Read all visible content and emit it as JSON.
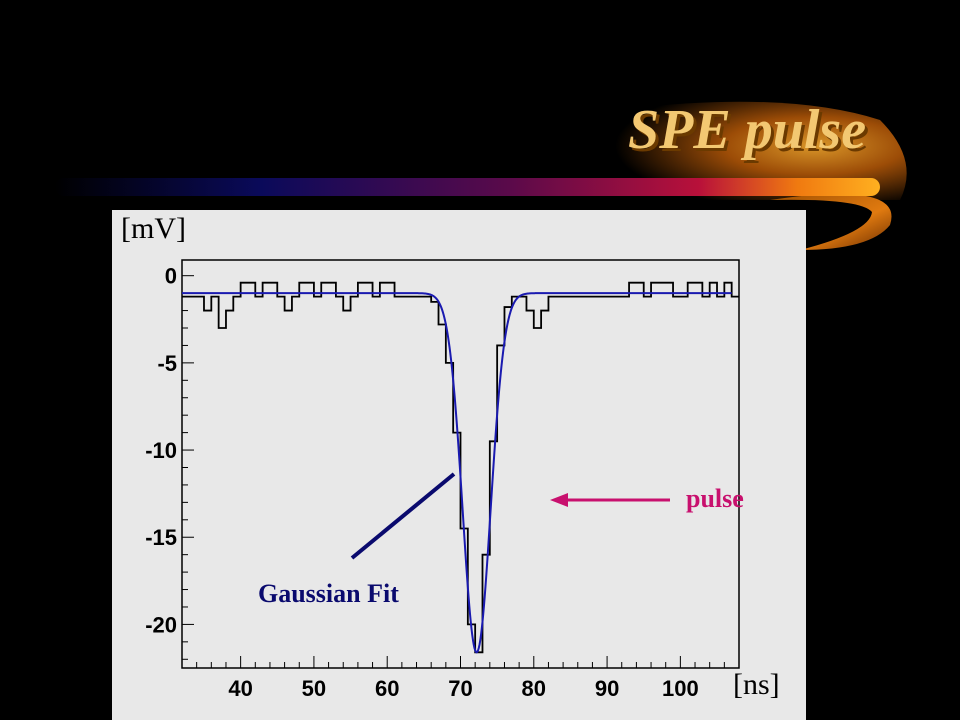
{
  "slide": {
    "title": "SPE pulse"
  },
  "annotations": {
    "gaussian_fit": "Gaussian Fit",
    "pulse": "pulse"
  },
  "colors": {
    "background": "#000000",
    "title": "#f3c872",
    "pulse_trace": "#000000",
    "fit_curve": "#1a1ab0",
    "gaussian_arrow": "#0a0a6e",
    "pulse_arrow": "#c8106e",
    "plot_frame": "#e8e8e8"
  },
  "chart_data": {
    "type": "line",
    "title": "",
    "xlabel": "[ns]",
    "ylabel": "[mV]",
    "xlim": [
      32,
      108
    ],
    "ylim": [
      -22.5,
      0.9
    ],
    "x_ticks": [
      40,
      50,
      60,
      70,
      80,
      90,
      100
    ],
    "y_ticks": [
      0,
      -5,
      -10,
      -15,
      -20
    ],
    "grid": false,
    "series": [
      {
        "name": "pulse",
        "style": "step",
        "x": [
          32,
          33,
          34,
          35,
          36,
          37,
          38,
          39,
          40,
          41,
          42,
          43,
          44,
          45,
          46,
          47,
          48,
          49,
          50,
          51,
          52,
          53,
          54,
          55,
          56,
          57,
          58,
          59,
          60,
          61,
          62,
          63,
          64,
          65,
          66,
          67,
          68,
          69,
          70,
          71,
          72,
          73,
          74,
          75,
          76,
          77,
          78,
          79,
          80,
          81,
          82,
          83,
          84,
          85,
          86,
          87,
          88,
          89,
          90,
          91,
          92,
          93,
          94,
          95,
          96,
          97,
          98,
          99,
          100,
          101,
          102,
          103,
          104,
          105,
          106,
          107
        ],
        "y": [
          -1.2,
          -1.2,
          -1.2,
          -2.0,
          -1.2,
          -3.0,
          -2.0,
          -1.2,
          -0.4,
          -0.4,
          -1.2,
          -0.4,
          -0.4,
          -1.2,
          -2.0,
          -1.2,
          -0.4,
          -0.4,
          -1.2,
          -0.4,
          -0.4,
          -1.2,
          -2.0,
          -1.2,
          -0.4,
          -0.4,
          -1.2,
          -0.4,
          -0.4,
          -1.2,
          -1.2,
          -1.2,
          -1.2,
          -1.2,
          -1.5,
          -2.8,
          -5.0,
          -9.0,
          -14.5,
          -20.0,
          -21.6,
          -16.0,
          -9.5,
          -4.0,
          -1.8,
          -1.2,
          -1.2,
          -2.0,
          -3.0,
          -2.0,
          -1.2,
          -1.2,
          -1.2,
          -1.2,
          -1.2,
          -1.2,
          -1.2,
          -1.2,
          -1.2,
          -1.2,
          -1.2,
          -0.4,
          -0.4,
          -1.2,
          -0.4,
          -0.4,
          -0.4,
          -1.2,
          -1.2,
          -0.4,
          -0.4,
          -1.2,
          -0.4,
          -1.2,
          -0.4,
          -1.2
        ]
      },
      {
        "name": "Gaussian Fit",
        "style": "gaussian",
        "baseline": -1.0,
        "amplitude": -20.6,
        "mean": 72.2,
        "sigma": 1.9
      }
    ]
  }
}
